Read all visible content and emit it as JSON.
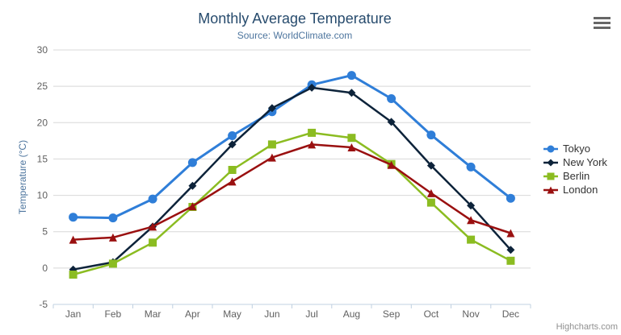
{
  "header": {
    "title": "Monthly Average Temperature",
    "subtitle": "Source: WorldClimate.com"
  },
  "credit_label": "Highcharts.com",
  "context_menu_icon": "hamburger-icon",
  "chart_data": {
    "type": "line",
    "title": "Monthly Average Temperature",
    "subtitle": "Source: WorldClimate.com",
    "categories": [
      "Jan",
      "Feb",
      "Mar",
      "Apr",
      "May",
      "Jun",
      "Jul",
      "Aug",
      "Sep",
      "Oct",
      "Nov",
      "Dec"
    ],
    "series": [
      {
        "name": "Tokyo",
        "color": "#2f7ed8",
        "marker": "circle",
        "values": [
          7.0,
          6.9,
          9.5,
          14.5,
          18.2,
          21.5,
          25.2,
          26.5,
          23.3,
          18.3,
          13.9,
          9.6
        ]
      },
      {
        "name": "New York",
        "color": "#0d233a",
        "marker": "diamond",
        "values": [
          -0.2,
          0.8,
          5.7,
          11.3,
          17.0,
          22.0,
          24.8,
          24.1,
          20.1,
          14.1,
          8.6,
          2.5
        ]
      },
      {
        "name": "Berlin",
        "color": "#8bbc21",
        "marker": "square",
        "values": [
          -0.9,
          0.6,
          3.5,
          8.4,
          13.5,
          17.0,
          18.6,
          17.9,
          14.3,
          9.0,
          3.9,
          1.0
        ]
      },
      {
        "name": "London",
        "color": "#9a1010",
        "marker": "triangle",
        "values": [
          3.9,
          4.2,
          5.7,
          8.5,
          11.9,
          15.2,
          17.0,
          16.6,
          14.2,
          10.3,
          6.6,
          4.8
        ]
      }
    ],
    "xlabel": "",
    "ylabel": "Temperature (°C)",
    "ylim": [
      -5,
      30
    ],
    "yticks": [
      -5,
      0,
      5,
      10,
      15,
      20,
      25,
      30
    ],
    "grid": "horizontal",
    "legend_position": "right"
  },
  "colors": {
    "title": "#274b6d",
    "subtitle": "#4d759e",
    "axis_label": "#606060",
    "axis_title": "#4d759e",
    "gridline": "#d8d8d8",
    "axis_line": "#c0d0e0",
    "legend_text": "#333333",
    "credit": "#909090",
    "menu_icon": "#666666"
  }
}
